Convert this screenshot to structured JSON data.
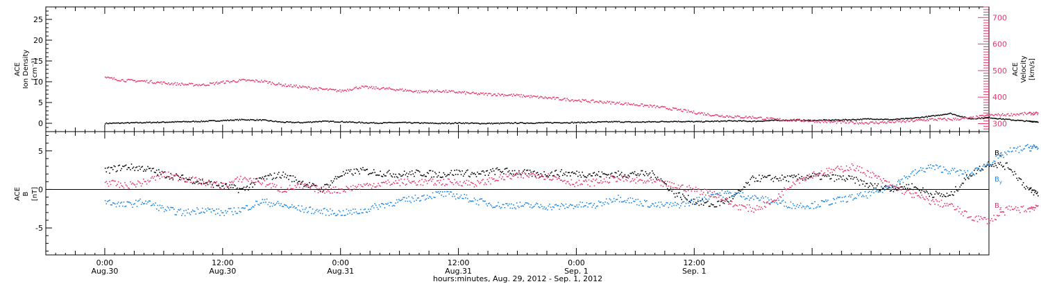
{
  "colors": {
    "density": "#000000",
    "velocity": "#e8386a",
    "bx": "#000000",
    "by": "#1e88e5",
    "bz": "#e8386a",
    "axis": "#000000"
  },
  "chart_data": [
    {
      "type": "scatter",
      "panel": "top",
      "ylabel": [
        "ACE",
        "Ion Density",
        "[cm⁻³]"
      ],
      "ylim": [
        -2,
        28
      ],
      "yticks": [
        0,
        5,
        10,
        15,
        20,
        25
      ],
      "y2label": [
        "ACE",
        "Velocity",
        "[km/s]"
      ],
      "y2lim": [
        270,
        740
      ],
      "y2ticks": [
        300,
        400,
        500,
        600,
        700
      ],
      "series": [
        {
          "name": "",
          "axis": "left",
          "color": "#000000",
          "x": [
            0,
            2,
            4,
            6,
            8,
            10,
            12,
            14,
            16,
            18,
            20,
            22,
            24,
            26,
            28,
            30,
            32,
            34,
            36,
            38,
            40,
            42,
            44,
            46,
            48,
            50,
            52,
            54,
            56,
            58,
            60,
            62,
            64,
            66,
            68,
            70,
            72,
            74,
            76,
            78,
            80,
            82,
            84,
            86,
            88,
            90,
            92,
            94,
            95
          ],
          "y": [
            0.1,
            0.2,
            0.3,
            0.4,
            0.5,
            0.6,
            0.8,
            1.0,
            0.9,
            0.4,
            0.3,
            0.6,
            0.5,
            0.3,
            0.2,
            0.3,
            0.2,
            0.1,
            0.2,
            0.1,
            0.1,
            0.2,
            0.2,
            0.3,
            0.3,
            0.4,
            0.5,
            0.4,
            0.5,
            0.6,
            0.5,
            0.6,
            0.7,
            0.6,
            0.8,
            0.9,
            0.8,
            0.9,
            1.0,
            1.2,
            1.0,
            1.3,
            1.8,
            2.5,
            1.2,
            1.5,
            1.0,
            0.6,
            0.5
          ]
        },
        {
          "name": "",
          "axis": "right",
          "color": "#e8386a",
          "x": [
            0,
            2,
            4,
            6,
            8,
            10,
            12,
            14,
            16,
            18,
            20,
            22,
            24,
            26,
            28,
            30,
            32,
            34,
            36,
            38,
            40,
            42,
            44,
            46,
            48,
            50,
            52,
            54,
            56,
            58,
            60,
            62,
            64,
            66,
            68,
            70,
            72,
            74,
            76,
            78,
            80,
            82,
            84,
            86,
            88,
            90,
            92,
            94,
            95
          ],
          "y": [
            475,
            465,
            462,
            455,
            450,
            448,
            458,
            465,
            462,
            448,
            440,
            432,
            425,
            440,
            435,
            430,
            422,
            425,
            420,
            414,
            412,
            408,
            402,
            396,
            390,
            385,
            380,
            374,
            366,
            356,
            344,
            334,
            328,
            326,
            318,
            315,
            312,
            308,
            306,
            305,
            308,
            312,
            318,
            318,
            322,
            334,
            336,
            340,
            340
          ]
        }
      ]
    },
    {
      "type": "scatter",
      "panel": "bottom",
      "ylabel": [
        "ACE",
        "B",
        "[nT]"
      ],
      "ylim": [
        -8.5,
        7.5
      ],
      "yticks": [
        -5,
        0,
        5
      ],
      "xlabel": "hours:minutes, Aug. 29, 2012 - Sep.  1, 2012",
      "xlim": [
        -6,
        90
      ],
      "xticks": [
        {
          "value": 0,
          "label": "0:00",
          "sublabel": "Aug.30"
        },
        {
          "value": 12,
          "label": "12:00",
          "sublabel": "Aug.30"
        },
        {
          "value": 24,
          "label": "0:00",
          "sublabel": "Aug.31"
        },
        {
          "value": 36,
          "label": "12:00",
          "sublabel": "Aug.31"
        },
        {
          "value": 48,
          "label": "0:00",
          "sublabel": "Sep. 1"
        },
        {
          "value": 60,
          "label": "12:00",
          "sublabel": "Sep. 1"
        }
      ],
      "series": [
        {
          "name": "B",
          "sub": "x",
          "color": "#000000",
          "x": [
            0,
            2,
            4,
            6,
            8,
            10,
            12,
            14,
            16,
            18,
            20,
            22,
            24,
            26,
            28,
            30,
            32,
            34,
            36,
            38,
            40,
            42,
            44,
            46,
            48,
            50,
            52,
            54,
            56,
            58,
            60,
            62,
            64,
            66,
            68,
            70,
            72,
            74,
            76,
            78,
            80,
            82,
            84,
            86,
            88,
            90,
            92,
            94,
            95
          ],
          "y": [
            2.5,
            3.0,
            2.8,
            2.0,
            1.5,
            1.0,
            0.5,
            0.0,
            1.5,
            2.0,
            1.0,
            0.0,
            2.0,
            2.5,
            2.2,
            2.0,
            2.2,
            2.0,
            2.3,
            2.0,
            2.5,
            2.3,
            2.0,
            2.2,
            2.1,
            2.0,
            2.0,
            2.1,
            2.0,
            -0.5,
            -1.5,
            -2.0,
            -1.0,
            1.5,
            1.5,
            1.5,
            1.8,
            1.6,
            1.4,
            0.5,
            0.2,
            0.5,
            -0.5,
            -0.8,
            2.0,
            3.5,
            3.0,
            0.0,
            -0.5
          ]
        },
        {
          "name": "B",
          "sub": "y",
          "color": "#1e88e5",
          "x": [
            0,
            2,
            4,
            6,
            8,
            10,
            12,
            14,
            16,
            18,
            20,
            22,
            24,
            26,
            28,
            30,
            32,
            34,
            36,
            38,
            40,
            42,
            44,
            46,
            48,
            50,
            52,
            54,
            56,
            58,
            60,
            62,
            64,
            66,
            68,
            70,
            72,
            74,
            76,
            78,
            80,
            82,
            84,
            86,
            88,
            90,
            92,
            94,
            95
          ],
          "y": [
            -1.5,
            -2.0,
            -1.5,
            -2.5,
            -3.0,
            -2.5,
            -3.0,
            -2.5,
            -1.5,
            -2.0,
            -2.5,
            -2.8,
            -3.0,
            -2.8,
            -2.0,
            -1.5,
            -1.0,
            -0.5,
            -0.8,
            -1.5,
            -2.0,
            -2.0,
            -2.1,
            -2.2,
            -2.0,
            -2.0,
            -1.0,
            -1.5,
            -2.0,
            -2.0,
            -1.5,
            -0.5,
            -0.5,
            -1.0,
            -1.5,
            -2.0,
            -2.0,
            -1.5,
            -1.0,
            -0.5,
            0.5,
            2.0,
            3.0,
            2.5,
            2.0,
            3.5,
            5.0,
            5.5,
            5.5
          ]
        },
        {
          "name": "B",
          "sub": "z",
          "color": "#e8386a",
          "x": [
            0,
            2,
            4,
            6,
            8,
            10,
            12,
            14,
            16,
            18,
            20,
            22,
            24,
            26,
            28,
            30,
            32,
            34,
            36,
            38,
            40,
            42,
            44,
            46,
            48,
            50,
            52,
            54,
            56,
            58,
            60,
            62,
            64,
            66,
            68,
            70,
            72,
            74,
            76,
            78,
            80,
            82,
            84,
            86,
            88,
            90,
            92,
            94,
            95
          ],
          "y": [
            1.0,
            0.5,
            1.0,
            2.0,
            1.5,
            1.0,
            0.5,
            1.5,
            1.0,
            0.0,
            0.5,
            0.0,
            0.0,
            0.5,
            0.8,
            1.0,
            1.0,
            1.0,
            1.0,
            0.8,
            1.5,
            1.8,
            2.0,
            1.5,
            0.8,
            1.0,
            1.5,
            1.2,
            1.0,
            0.5,
            0.0,
            -0.5,
            -2.0,
            -2.5,
            -1.5,
            1.0,
            2.0,
            2.5,
            3.0,
            2.0,
            0.5,
            -0.5,
            -1.5,
            -2.0,
            -3.5,
            -4.0,
            -2.5,
            -2.5,
            -2.0
          ]
        }
      ]
    }
  ]
}
